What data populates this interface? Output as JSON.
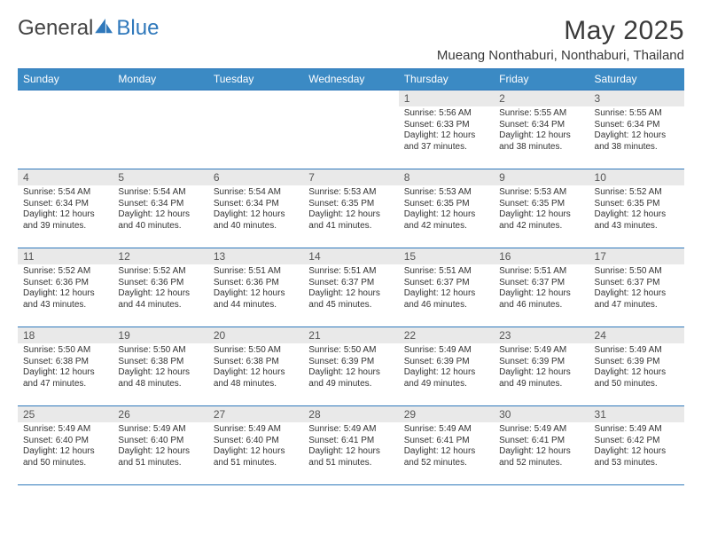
{
  "logo": {
    "word1": "General",
    "word2": "Blue"
  },
  "title": "May 2025",
  "subtitle": "Mueang Nonthaburi, Nonthaburi, Thailand",
  "colors": {
    "accent": "#3b8ac4",
    "rule": "#2f78bb",
    "dayStripe": "#e9e9e9",
    "text": "#333333",
    "bg": "#ffffff"
  },
  "columns": [
    "Sunday",
    "Monday",
    "Tuesday",
    "Wednesday",
    "Thursday",
    "Friday",
    "Saturday"
  ],
  "firstDayIndex": 4,
  "days": [
    {
      "n": 1,
      "sunrise": "5:56 AM",
      "sunset": "6:33 PM",
      "dl_h": 12,
      "dl_m": 37
    },
    {
      "n": 2,
      "sunrise": "5:55 AM",
      "sunset": "6:34 PM",
      "dl_h": 12,
      "dl_m": 38
    },
    {
      "n": 3,
      "sunrise": "5:55 AM",
      "sunset": "6:34 PM",
      "dl_h": 12,
      "dl_m": 38
    },
    {
      "n": 4,
      "sunrise": "5:54 AM",
      "sunset": "6:34 PM",
      "dl_h": 12,
      "dl_m": 39
    },
    {
      "n": 5,
      "sunrise": "5:54 AM",
      "sunset": "6:34 PM",
      "dl_h": 12,
      "dl_m": 40
    },
    {
      "n": 6,
      "sunrise": "5:54 AM",
      "sunset": "6:34 PM",
      "dl_h": 12,
      "dl_m": 40
    },
    {
      "n": 7,
      "sunrise": "5:53 AM",
      "sunset": "6:35 PM",
      "dl_h": 12,
      "dl_m": 41
    },
    {
      "n": 8,
      "sunrise": "5:53 AM",
      "sunset": "6:35 PM",
      "dl_h": 12,
      "dl_m": 42
    },
    {
      "n": 9,
      "sunrise": "5:53 AM",
      "sunset": "6:35 PM",
      "dl_h": 12,
      "dl_m": 42
    },
    {
      "n": 10,
      "sunrise": "5:52 AM",
      "sunset": "6:35 PM",
      "dl_h": 12,
      "dl_m": 43
    },
    {
      "n": 11,
      "sunrise": "5:52 AM",
      "sunset": "6:36 PM",
      "dl_h": 12,
      "dl_m": 43
    },
    {
      "n": 12,
      "sunrise": "5:52 AM",
      "sunset": "6:36 PM",
      "dl_h": 12,
      "dl_m": 44
    },
    {
      "n": 13,
      "sunrise": "5:51 AM",
      "sunset": "6:36 PM",
      "dl_h": 12,
      "dl_m": 44
    },
    {
      "n": 14,
      "sunrise": "5:51 AM",
      "sunset": "6:37 PM",
      "dl_h": 12,
      "dl_m": 45
    },
    {
      "n": 15,
      "sunrise": "5:51 AM",
      "sunset": "6:37 PM",
      "dl_h": 12,
      "dl_m": 46
    },
    {
      "n": 16,
      "sunrise": "5:51 AM",
      "sunset": "6:37 PM",
      "dl_h": 12,
      "dl_m": 46
    },
    {
      "n": 17,
      "sunrise": "5:50 AM",
      "sunset": "6:37 PM",
      "dl_h": 12,
      "dl_m": 47
    },
    {
      "n": 18,
      "sunrise": "5:50 AM",
      "sunset": "6:38 PM",
      "dl_h": 12,
      "dl_m": 47
    },
    {
      "n": 19,
      "sunrise": "5:50 AM",
      "sunset": "6:38 PM",
      "dl_h": 12,
      "dl_m": 48
    },
    {
      "n": 20,
      "sunrise": "5:50 AM",
      "sunset": "6:38 PM",
      "dl_h": 12,
      "dl_m": 48
    },
    {
      "n": 21,
      "sunrise": "5:50 AM",
      "sunset": "6:39 PM",
      "dl_h": 12,
      "dl_m": 49
    },
    {
      "n": 22,
      "sunrise": "5:49 AM",
      "sunset": "6:39 PM",
      "dl_h": 12,
      "dl_m": 49
    },
    {
      "n": 23,
      "sunrise": "5:49 AM",
      "sunset": "6:39 PM",
      "dl_h": 12,
      "dl_m": 49
    },
    {
      "n": 24,
      "sunrise": "5:49 AM",
      "sunset": "6:39 PM",
      "dl_h": 12,
      "dl_m": 50
    },
    {
      "n": 25,
      "sunrise": "5:49 AM",
      "sunset": "6:40 PM",
      "dl_h": 12,
      "dl_m": 50
    },
    {
      "n": 26,
      "sunrise": "5:49 AM",
      "sunset": "6:40 PM",
      "dl_h": 12,
      "dl_m": 51
    },
    {
      "n": 27,
      "sunrise": "5:49 AM",
      "sunset": "6:40 PM",
      "dl_h": 12,
      "dl_m": 51
    },
    {
      "n": 28,
      "sunrise": "5:49 AM",
      "sunset": "6:41 PM",
      "dl_h": 12,
      "dl_m": 51
    },
    {
      "n": 29,
      "sunrise": "5:49 AM",
      "sunset": "6:41 PM",
      "dl_h": 12,
      "dl_m": 52
    },
    {
      "n": 30,
      "sunrise": "5:49 AM",
      "sunset": "6:41 PM",
      "dl_h": 12,
      "dl_m": 52
    },
    {
      "n": 31,
      "sunrise": "5:49 AM",
      "sunset": "6:42 PM",
      "dl_h": 12,
      "dl_m": 53
    }
  ],
  "labels": {
    "sunrise": "Sunrise:",
    "sunset": "Sunset:",
    "daylight": "Daylight:",
    "hours_word": "hours",
    "and_word": "and",
    "minutes_word": "minutes."
  }
}
